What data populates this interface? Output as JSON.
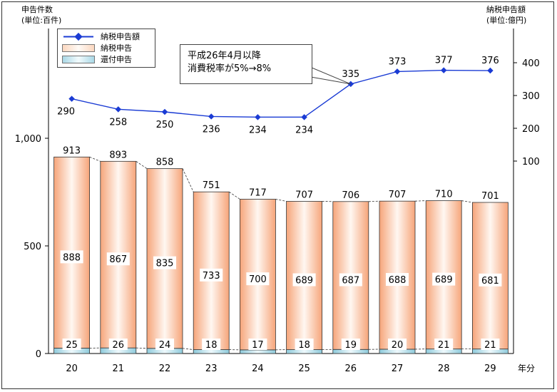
{
  "chart_data": {
    "type": "bar",
    "categories": [
      "20",
      "21",
      "22",
      "23",
      "24",
      "25",
      "26",
      "27",
      "28",
      "29"
    ],
    "x_unit_label": "年分",
    "left_axis": {
      "title_line1": "申告件数",
      "title_line2": "(単位:百件)",
      "ticks": [
        "0",
        "500",
        "1,000"
      ],
      "tick_values": [
        0,
        500,
        1000
      ],
      "range": [
        0,
        1000
      ]
    },
    "right_axis": {
      "title_line1": "納税申告額",
      "title_line2": "(単位:億円)",
      "ticks": [
        "100",
        "200",
        "300",
        "400"
      ],
      "tick_values": [
        100,
        200,
        300,
        400
      ]
    },
    "series": [
      {
        "name": "納税申告額",
        "kind": "line",
        "axis": "right",
        "values": [
          290,
          258,
          250,
          236,
          234,
          234,
          335,
          373,
          377,
          376
        ],
        "color": "#1a3bd4"
      },
      {
        "name": "納税申告",
        "kind": "stacked-bar",
        "axis": "left",
        "values": [
          888,
          867,
          835,
          733,
          700,
          689,
          687,
          688,
          689,
          681
        ],
        "color": "#f7b48c"
      },
      {
        "name": "還付申告",
        "kind": "stacked-bar",
        "axis": "left",
        "values": [
          25,
          26,
          24,
          18,
          17,
          18,
          19,
          20,
          21,
          21
        ],
        "color": "#9fd3e2"
      }
    ],
    "totals": [
      913,
      893,
      858,
      751,
      717,
      707,
      706,
      707,
      710,
      701
    ],
    "annotation": {
      "line1": "平成26年4月以降",
      "line2": "消費税率が5%→8%"
    },
    "legend_position": "top-left",
    "grid": false
  }
}
